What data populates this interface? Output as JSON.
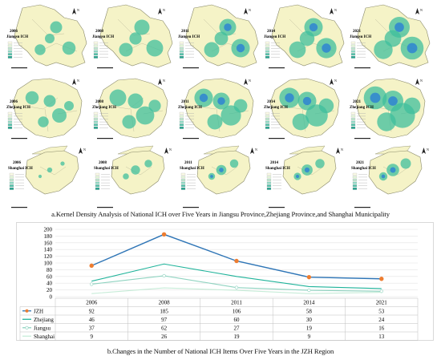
{
  "panel_a": {
    "caption": "a.Kernel Density Analysis of National ICH over Five Years in Jiangsu Province,Zhejiang Province,and Shanghai Municipality",
    "years": [
      "2006",
      "2008",
      "2011",
      "2014",
      "2021"
    ],
    "rows": [
      {
        "region": "Jiangsu ICH",
        "map_fill": "#f5f3c7",
        "density_color": "#3fbf9c",
        "hot_color": "#2a7fd4"
      },
      {
        "region": "Zhejiang ICH",
        "map_fill": "#f5f3c7",
        "density_color": "#3fbf9c",
        "hot_color": "#2a7fd4"
      },
      {
        "region": "Shanghai ICH",
        "map_fill": "#f5f3c7",
        "density_color": "#3fbf9c",
        "hot_color": "#2a7fd4"
      }
    ],
    "north_label": "N"
  },
  "panel_b": {
    "caption": "b.Changes in the Number of National ICH Items Over Five Years in the JZH Region"
  },
  "chart_data": {
    "type": "line",
    "title": "",
    "xlabel": "",
    "ylabel": "",
    "categories": [
      "2006",
      "2008",
      "2011",
      "2014",
      "2021"
    ],
    "ylim": [
      0,
      200
    ],
    "yticks": [
      0,
      20,
      40,
      60,
      80,
      100,
      120,
      140,
      160,
      180,
      200
    ],
    "grid": true,
    "legend": "table-left",
    "series": [
      {
        "name": "JZH",
        "values": [
          92,
          185,
          106,
          58,
          53
        ],
        "color": "#2e75b6",
        "marker": "circle-orange"
      },
      {
        "name": "Zhejiang",
        "values": [
          46,
          97,
          60,
          30,
          24
        ],
        "color": "#1fb39a",
        "marker": "none"
      },
      {
        "name": "Jiangsu",
        "values": [
          37,
          62,
          27,
          19,
          16
        ],
        "color": "#8fd3c0",
        "marker": "circle-white"
      },
      {
        "name": "Shanghai",
        "values": [
          9,
          26,
          19,
          9,
          13
        ],
        "color": "#c7ecd8",
        "marker": "none"
      }
    ]
  }
}
